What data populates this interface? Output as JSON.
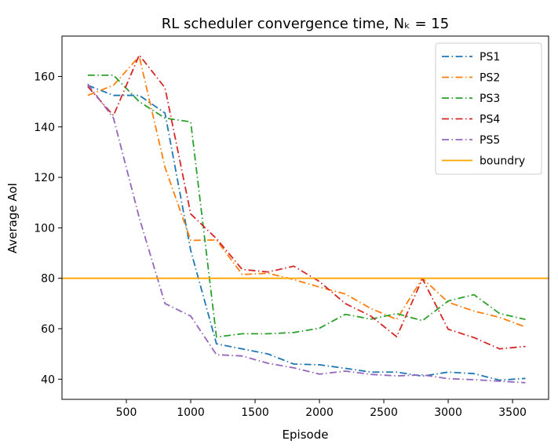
{
  "chart_data": {
    "type": "line",
    "title": "RL scheduler convergence time, Nₖ = 15",
    "xlabel": "Episode",
    "ylabel": "Average AoI",
    "xlim": [
      0,
      3780
    ],
    "ylim": [
      32,
      176
    ],
    "xticks": [
      500,
      1000,
      1500,
      2000,
      2500,
      3000,
      3500
    ],
    "yticks": [
      40,
      60,
      80,
      100,
      120,
      140,
      160
    ],
    "x": [
      200,
      400,
      600,
      800,
      1000,
      1200,
      1400,
      1600,
      1800,
      2000,
      2200,
      2400,
      2600,
      2800,
      3000,
      3200,
      3400,
      3600
    ],
    "series": [
      {
        "name": "PS1",
        "color": "#1f77b4",
        "style": "dashdot",
        "values": [
          156.5,
          152.5,
          152.5,
          145.5,
          91,
          54,
          52,
          50,
          46,
          45.7,
          44.3,
          42.8,
          42.8,
          41.2,
          42.8,
          42.2,
          39.6,
          40.3
        ]
      },
      {
        "name": "PS2",
        "color": "#ff7f0e",
        "style": "dashdot",
        "values": [
          152.5,
          156.5,
          168,
          124,
          95,
          95.2,
          81.5,
          82,
          79.5,
          76.5,
          73.8,
          68,
          63.7,
          80,
          70.5,
          67,
          64.5,
          60.7
        ]
      },
      {
        "name": "PS3",
        "color": "#2ca02c",
        "style": "dashdot",
        "values": [
          160.5,
          160.5,
          150,
          143.5,
          142,
          56.7,
          58,
          58,
          58.5,
          60.2,
          65.7,
          63.8,
          66,
          63.2,
          71,
          73.5,
          66,
          63.7
        ]
      },
      {
        "name": "PS4",
        "color": "#d62728",
        "style": "dashdot",
        "values": [
          156,
          144.5,
          168.5,
          155.5,
          105.5,
          95.7,
          83.5,
          82.5,
          84.8,
          78.7,
          70,
          65,
          56.8,
          79.8,
          59.8,
          56.5,
          52,
          53
        ]
      },
      {
        "name": "PS5",
        "color": "#9467bd",
        "style": "dashdot",
        "values": [
          157,
          143.5,
          104,
          70,
          65,
          49.7,
          49.2,
          46.3,
          44.5,
          42,
          43.2,
          41.9,
          41.3,
          41.7,
          40.2,
          39.8,
          39.2,
          38.6
        ]
      }
    ],
    "hlines": [
      {
        "name": "boundry",
        "y": 80,
        "color": "#ffa500",
        "style": "solid"
      }
    ],
    "legend": "top-right",
    "grid": false
  }
}
